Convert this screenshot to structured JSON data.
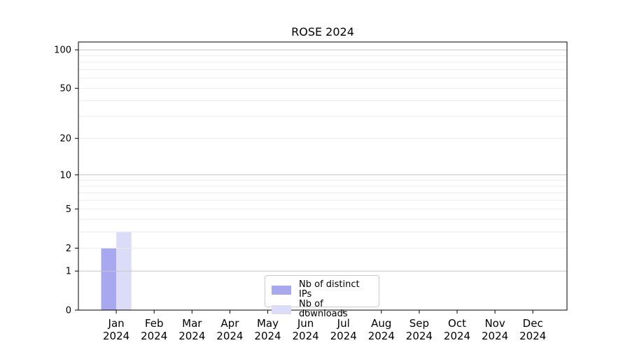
{
  "chart": {
    "title": "ROSE 2024"
  },
  "chart_data": {
    "type": "bar",
    "title": "ROSE 2024",
    "categories": [
      "Jan",
      "Feb",
      "Mar",
      "Apr",
      "May",
      "Jun",
      "Jul",
      "Aug",
      "Sep",
      "Oct",
      "Nov",
      "Dec"
    ],
    "category_sublabel": "2024",
    "series": [
      {
        "name": "Nb of distinct IPs",
        "color": "#a8a8f0",
        "values": [
          2,
          0,
          0,
          0,
          0,
          0,
          0,
          0,
          0,
          0,
          0,
          0
        ]
      },
      {
        "name": "Nb of downloads",
        "color": "#dcdcf8",
        "values": [
          3,
          0,
          0,
          0,
          0,
          0,
          0,
          0,
          0,
          0,
          0,
          0
        ]
      }
    ],
    "yscale": "log1p",
    "ylim": [
      0,
      115
    ],
    "y_ticks": [
      0,
      1,
      2,
      5,
      10,
      20,
      50,
      100
    ],
    "y_major_gridlines": [
      1,
      10,
      100
    ],
    "y_minor_gridlines": [
      2,
      3,
      4,
      5,
      6,
      7,
      8,
      9,
      20,
      30,
      40,
      50,
      60,
      70,
      80,
      90
    ],
    "grid": "horizontal",
    "legend_position": "lower center inside",
    "colors": {
      "major_grid": "#c6c6c6",
      "minor_grid": "#ececec",
      "axis": "#000000",
      "background": "#ffffff"
    }
  }
}
